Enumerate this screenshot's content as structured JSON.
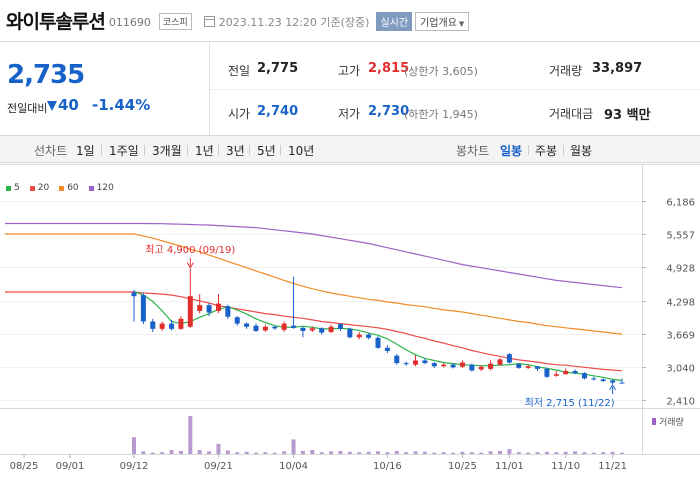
{
  "header": {
    "name": "와이투솔루션",
    "code": "011690",
    "market": "코스피",
    "datetime": "2023.11.23 12:20 기준(장중)",
    "live": "실시간",
    "overview": "기업개요"
  },
  "price": {
    "current": "2,735",
    "change_label": "전일대비",
    "change_amount": "40",
    "change_rate": "-1.44%"
  },
  "stats": {
    "prev_label": "전일",
    "prev": "2,775",
    "high_label": "고가",
    "high": "2,815",
    "upper_limit": "(상한가 3,605)",
    "volume_label": "거래량",
    "volume": "33,897",
    "open_label": "시가",
    "open": "2,740",
    "low_label": "저가",
    "low": "2,730",
    "lower_limit": "(하한가 1,945)",
    "amount_label": "거래대금",
    "amount": "93 백만"
  },
  "periods": {
    "line_label": "선차트",
    "line_items": [
      "1일",
      "1주일",
      "3개월",
      "1년",
      "3년",
      "5년",
      "10년"
    ],
    "candle_label": "봉차트",
    "candle_items": [
      "일봉",
      "주봉",
      "월봉"
    ],
    "active_candle": "일봉"
  },
  "colors": {
    "up": "#e22d2d",
    "down": "#1861c8",
    "ma5": "#2cb34a",
    "ma20": "#ef4a4a",
    "ma60": "#f28c28",
    "ma120": "#9e61c4"
  },
  "chart_data": {
    "type": "candlestick",
    "legend": [
      "5",
      "20",
      "60",
      "120"
    ],
    "y_ticks": [
      "6,186",
      "5,557",
      "4,928",
      "4,298",
      "3,669",
      "3,040",
      "2,410"
    ],
    "ylim": [
      2410,
      6186
    ],
    "x_ticks": [
      "08/25",
      "09/01",
      "09/12",
      "09/21",
      "10/04",
      "10/16",
      "10/25",
      "11/01",
      "11/10",
      "11/21"
    ],
    "volume_label": "거래량",
    "max_annotation": "최고 4,900 (09/19)",
    "min_annotation": "최저 2,715 (11/22)",
    "candles": [
      {
        "o": 4450,
        "c": 4380,
        "h": 4500,
        "l": 3900
      },
      {
        "o": 4400,
        "c": 3900,
        "h": 4450,
        "l": 3850
      },
      {
        "o": 3900,
        "c": 3760,
        "h": 3950,
        "l": 3700
      },
      {
        "o": 3760,
        "c": 3860,
        "h": 3900,
        "l": 3720
      },
      {
        "o": 3860,
        "c": 3760,
        "h": 3930,
        "l": 3730
      },
      {
        "o": 3760,
        "c": 3950,
        "h": 4000,
        "l": 3740
      },
      {
        "o": 3800,
        "c": 4380,
        "h": 4900,
        "l": 3780
      },
      {
        "o": 4100,
        "c": 4210,
        "h": 4420,
        "l": 4050
      },
      {
        "o": 4210,
        "c": 4070,
        "h": 4250,
        "l": 4000
      },
      {
        "o": 4100,
        "c": 4240,
        "h": 4420,
        "l": 4060
      },
      {
        "o": 4190,
        "c": 3990,
        "h": 4220,
        "l": 3950
      },
      {
        "o": 3980,
        "c": 3860,
        "h": 4000,
        "l": 3820
      },
      {
        "o": 3860,
        "c": 3800,
        "h": 3880,
        "l": 3760
      },
      {
        "o": 3820,
        "c": 3720,
        "h": 3860,
        "l": 3700
      },
      {
        "o": 3730,
        "c": 3800,
        "h": 3840,
        "l": 3700
      },
      {
        "o": 3800,
        "c": 3770,
        "h": 3820,
        "l": 3740
      },
      {
        "o": 3740,
        "c": 3860,
        "h": 3900,
        "l": 3700
      },
      {
        "o": 3820,
        "c": 3780,
        "h": 4750,
        "l": 3760
      },
      {
        "o": 3780,
        "c": 3720,
        "h": 3800,
        "l": 3600
      },
      {
        "o": 3730,
        "c": 3770,
        "h": 3810,
        "l": 3700
      },
      {
        "o": 3770,
        "c": 3690,
        "h": 3790,
        "l": 3650
      },
      {
        "o": 3700,
        "c": 3800,
        "h": 3840,
        "l": 3680
      },
      {
        "o": 3850,
        "c": 3760,
        "h": 3870,
        "l": 3720
      },
      {
        "o": 3760,
        "c": 3600,
        "h": 3780,
        "l": 3580
      },
      {
        "o": 3600,
        "c": 3650,
        "h": 3700,
        "l": 3560
      },
      {
        "o": 3650,
        "c": 3590,
        "h": 3680,
        "l": 3560
      },
      {
        "o": 3590,
        "c": 3400,
        "h": 3620,
        "l": 3380
      },
      {
        "o": 3400,
        "c": 3340,
        "h": 3450,
        "l": 3300
      },
      {
        "o": 3250,
        "c": 3110,
        "h": 3280,
        "l": 3080
      },
      {
        "o": 3110,
        "c": 3090,
        "h": 3140,
        "l": 3060
      },
      {
        "o": 3080,
        "c": 3160,
        "h": 3260,
        "l": 3050
      },
      {
        "o": 3160,
        "c": 3110,
        "h": 3200,
        "l": 3090
      },
      {
        "o": 3110,
        "c": 3050,
        "h": 3130,
        "l": 3020
      },
      {
        "o": 3050,
        "c": 3080,
        "h": 3110,
        "l": 3030
      },
      {
        "o": 3080,
        "c": 3030,
        "h": 3110,
        "l": 3010
      },
      {
        "o": 3040,
        "c": 3120,
        "h": 3160,
        "l": 3020
      },
      {
        "o": 3080,
        "c": 2970,
        "h": 3100,
        "l": 2950
      },
      {
        "o": 2990,
        "c": 3040,
        "h": 3070,
        "l": 2960
      },
      {
        "o": 3000,
        "c": 3100,
        "h": 3170,
        "l": 2970
      },
      {
        "o": 3080,
        "c": 3180,
        "h": 3210,
        "l": 3060
      },
      {
        "o": 3280,
        "c": 3120,
        "h": 3300,
        "l": 3100
      },
      {
        "o": 3090,
        "c": 3020,
        "h": 3110,
        "l": 3000
      },
      {
        "o": 3020,
        "c": 3050,
        "h": 3080,
        "l": 3000
      },
      {
        "o": 3050,
        "c": 3000,
        "h": 3060,
        "l": 2960
      },
      {
        "o": 3000,
        "c": 2850,
        "h": 3020,
        "l": 2830
      },
      {
        "o": 2870,
        "c": 2900,
        "h": 2960,
        "l": 2850
      },
      {
        "o": 2900,
        "c": 2960,
        "h": 3010,
        "l": 2890
      },
      {
        "o": 2960,
        "c": 2920,
        "h": 2990,
        "l": 2900
      },
      {
        "o": 2920,
        "c": 2820,
        "h": 2940,
        "l": 2800
      },
      {
        "o": 2820,
        "c": 2800,
        "h": 2850,
        "l": 2780
      },
      {
        "o": 2800,
        "c": 2770,
        "h": 2830,
        "l": 2750
      },
      {
        "o": 2780,
        "c": 2740,
        "h": 2800,
        "l": 2715
      },
      {
        "o": 2740,
        "c": 2735,
        "h": 2815,
        "l": 2730
      }
    ],
    "volumes": [
      380,
      60,
      30,
      40,
      90,
      70,
      860,
      90,
      60,
      230,
      80,
      40,
      50,
      30,
      40,
      30,
      60,
      330,
      70,
      90,
      40,
      60,
      70,
      50,
      40,
      50,
      60,
      40,
      70,
      40,
      60,
      50,
      30,
      40,
      30,
      50,
      40,
      30,
      60,
      70,
      110,
      40,
      30,
      40,
      50,
      40,
      50,
      60,
      40,
      30,
      40,
      50,
      30
    ],
    "ma5": [
      4470,
      4400,
      4280,
      4100,
      3900,
      3860,
      3900,
      3980,
      4050,
      4130,
      4180,
      4120,
      4040,
      3950,
      3880,
      3820,
      3790,
      3790,
      3810,
      3790,
      3760,
      3760,
      3770,
      3760,
      3730,
      3680,
      3640,
      3570,
      3470,
      3360,
      3270,
      3200,
      3160,
      3120,
      3100,
      3080,
      3070,
      3060,
      3060,
      3070,
      3080,
      3100,
      3080,
      3040,
      3010,
      2980,
      2940,
      2920,
      2900,
      2870,
      2840,
      2800,
      2780
    ],
    "ma20": [
      4460,
      4440,
      4430,
      4420,
      4400,
      4370,
      4330,
      4290,
      4250,
      4200,
      4170,
      4140,
      4110,
      4080,
      4050,
      4030,
      4000,
      3980,
      3960,
      3930,
      3900,
      3880,
      3860,
      3840,
      3820,
      3800,
      3780,
      3750,
      3710,
      3670,
      3620,
      3580,
      3530,
      3490,
      3440,
      3400,
      3350,
      3310,
      3270,
      3240,
      3200,
      3170,
      3150,
      3130,
      3100,
      3080,
      3070,
      3050,
      3030,
      3010,
      2990,
      2980,
      2965
    ],
    "ma60": [
      5560,
      5520,
      5480,
      5430,
      5380,
      5330,
      5270,
      5220,
      5160,
      5100,
      5040,
      4980,
      4920,
      4860,
      4800,
      4740,
      4680,
      4620,
      4570,
      4520,
      4480,
      4440,
      4410,
      4380,
      4350,
      4320,
      4300,
      4270,
      4250,
      4220,
      4200,
      4180,
      4150,
      4120,
      4100,
      4080,
      4050,
      4020,
      3990,
      3960,
      3930,
      3900,
      3880,
      3850,
      3820,
      3800,
      3780,
      3760,
      3740,
      3720,
      3700,
      3680,
      3660
    ],
    "ma120": [
      5760,
      5760,
      5758,
      5755,
      5750,
      5745,
      5740,
      5735,
      5730,
      5720,
      5710,
      5700,
      5690,
      5680,
      5660,
      5640,
      5620,
      5600,
      5580,
      5560,
      5530,
      5500,
      5470,
      5440,
      5410,
      5380,
      5340,
      5300,
      5260,
      5220,
      5180,
      5140,
      5100,
      5060,
      5020,
      4980,
      4950,
      4920,
      4890,
      4860,
      4830,
      4800,
      4770,
      4740,
      4710,
      4680,
      4660,
      4640,
      4620,
      4600,
      4580,
      4560,
      4540
    ]
  }
}
